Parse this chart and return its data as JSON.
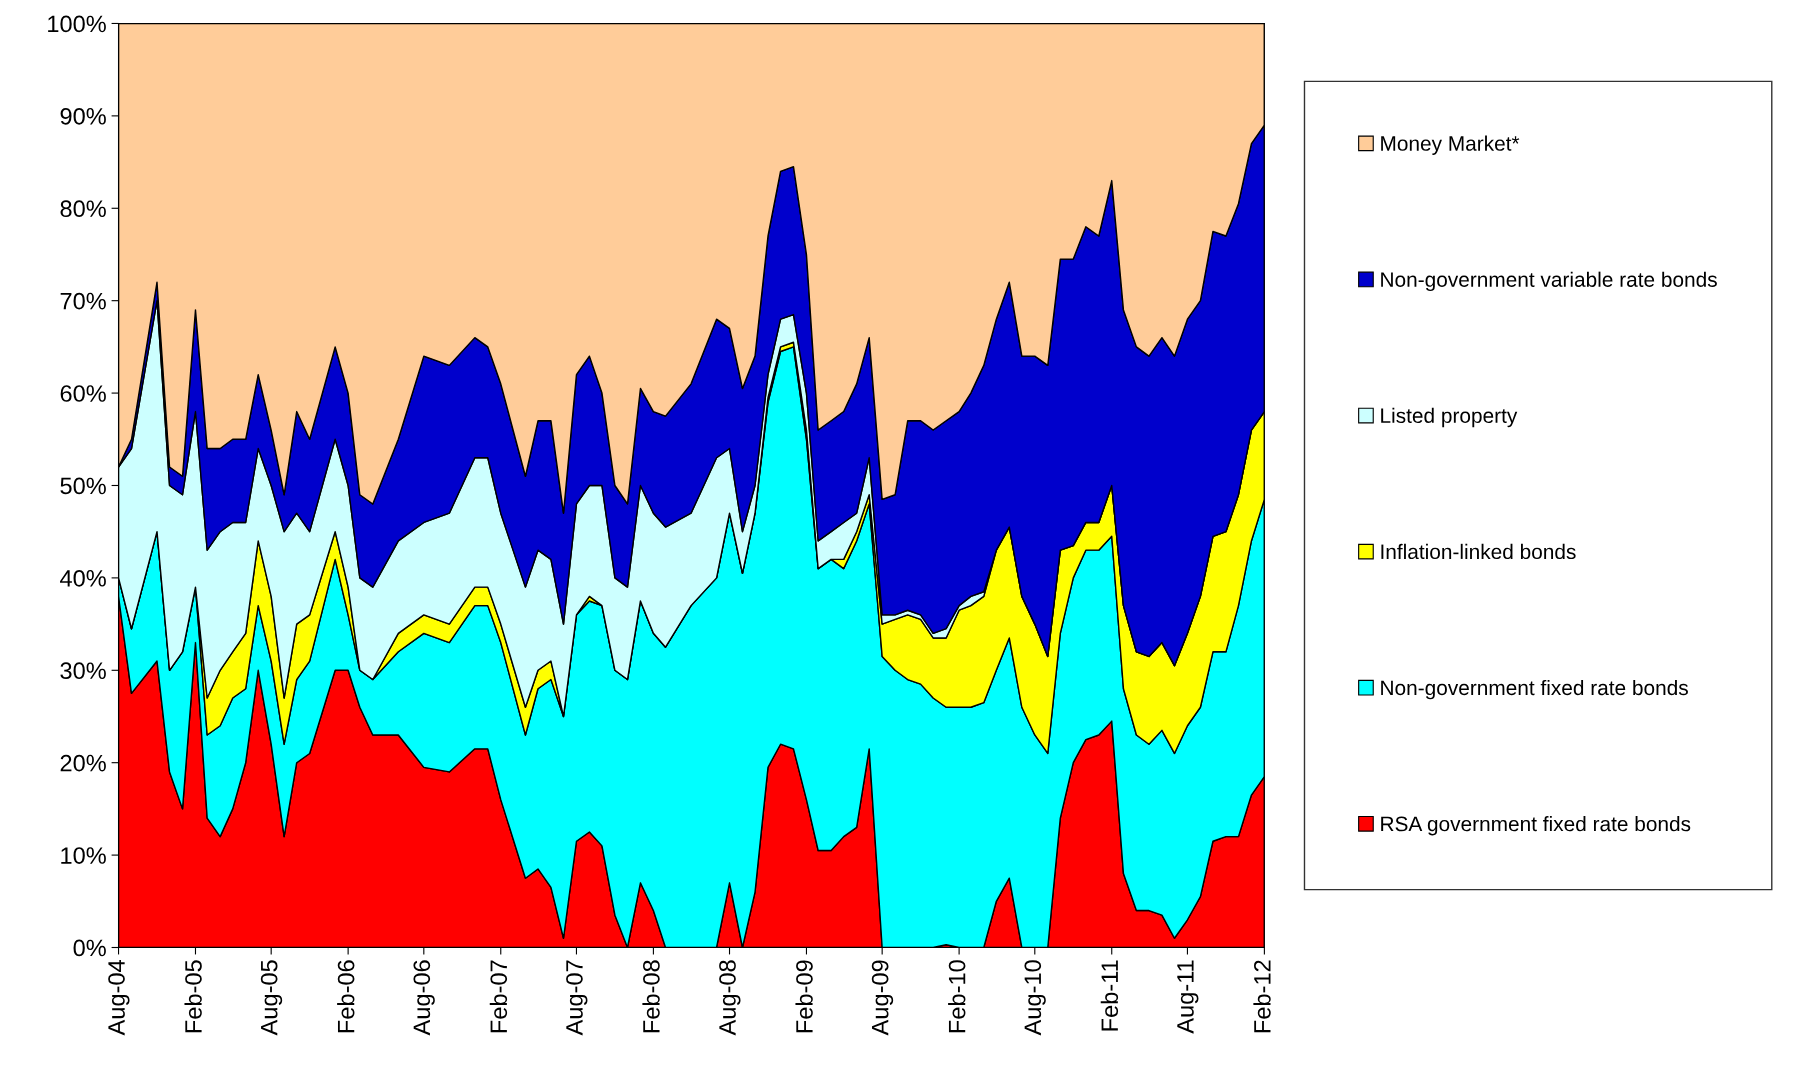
{
  "chart_data": {
    "type": "area",
    "stacked": true,
    "legend": "right",
    "x": [
      "2004-08",
      "2004-09",
      "2004-11",
      "2004-12",
      "2005-01",
      "2005-02",
      "2005-03",
      "2005-04",
      "2005-05",
      "2005-06",
      "2005-07",
      "2005-08",
      "2005-09",
      "2005-10",
      "2005-11",
      "2006-01",
      "2006-02",
      "2006-03",
      "2006-04",
      "2006-06",
      "2006-08",
      "2006-10",
      "2006-12",
      "2007-01",
      "2007-02",
      "2007-04",
      "2007-05",
      "2007-06",
      "2007-07",
      "2007-08",
      "2007-09",
      "2007-10",
      "2007-11",
      "2007-12",
      "2008-01",
      "2008-02",
      "2008-03",
      "2008-05",
      "2008-07",
      "2008-08",
      "2008-09",
      "2008-10",
      "2008-11",
      "2008-12",
      "2009-01",
      "2009-02",
      "2009-03",
      "2009-04",
      "2009-05",
      "2009-06",
      "2009-07",
      "2009-08",
      "2009-09",
      "2009-10",
      "2009-11",
      "2009-12",
      "2010-01",
      "2010-02",
      "2010-03",
      "2010-04",
      "2010-05",
      "2010-06",
      "2010-07",
      "2010-08",
      "2010-09",
      "2010-10",
      "2010-11",
      "2010-12",
      "2011-01",
      "2011-02",
      "2011-03",
      "2011-04",
      "2011-05",
      "2011-06",
      "2011-07",
      "2011-08",
      "2011-09",
      "2011-10",
      "2011-11",
      "2011-12",
      "2012-01",
      "2012-02"
    ],
    "series": [
      {
        "name": "RSA government fixed rate bonds",
        "color": "#ff0000",
        "values": [
          38,
          27.5,
          31,
          19,
          15,
          33,
          14,
          12,
          15,
          20,
          30,
          22,
          12,
          20,
          21,
          30,
          30,
          26,
          23,
          23,
          19.5,
          19,
          21.5,
          21.5,
          16,
          7.5,
          8.5,
          6.5,
          1,
          11.5,
          12.5,
          11,
          3.5,
          0,
          7,
          4,
          0,
          0,
          0,
          7,
          0,
          6,
          19.5,
          22,
          21.5,
          16,
          10.5,
          10.5,
          12,
          13,
          21.5,
          0,
          0,
          0,
          0,
          0,
          0.3,
          0,
          0,
          0,
          5,
          7.5,
          0,
          0,
          0,
          14,
          20,
          22.5,
          23,
          24.5,
          8,
          4,
          4,
          3.5,
          1,
          3,
          5.5,
          11.5,
          12,
          12,
          16.5,
          18.5
        ]
      },
      {
        "name": "Non-government fixed rate bonds",
        "color": "#00ffff",
        "values": [
          2,
          7,
          14,
          11,
          17,
          6,
          9,
          12,
          12,
          8,
          7,
          9,
          10,
          9,
          10,
          12,
          6,
          4,
          6,
          9,
          14.5,
          14,
          15.5,
          15.5,
          17,
          15.5,
          19.5,
          22.5,
          24,
          24.5,
          25,
          26,
          26.5,
          29,
          30.5,
          30,
          32.5,
          37,
          40,
          40,
          40.5,
          41,
          39.5,
          42.5,
          43.5,
          39,
          30.5,
          31.5,
          29,
          31,
          26.5,
          31.5,
          30,
          29,
          28.5,
          27,
          25.7,
          26,
          26,
          26.5,
          25,
          26,
          26,
          23,
          21,
          20,
          20,
          20.5,
          20,
          20,
          20,
          19,
          18,
          20,
          20,
          21,
          20.5,
          20.5,
          20,
          25,
          27.5,
          30
        ]
      },
      {
        "name": "Inflation-linked bonds",
        "color": "#ffff00",
        "values": [
          0,
          0,
          0,
          0,
          0,
          0,
          4,
          6,
          5,
          6,
          7,
          7,
          5,
          6,
          5,
          3,
          3,
          0,
          0,
          2,
          2,
          2,
          2,
          2,
          2,
          3,
          2,
          2,
          0,
          0,
          0.5,
          0,
          0,
          0,
          0,
          0,
          0,
          0,
          0,
          0,
          0,
          0,
          0.5,
          0.5,
          0.5,
          1,
          0,
          0,
          1,
          1,
          1,
          3.5,
          5.5,
          7,
          7,
          6.5,
          7.5,
          10.5,
          11,
          11.5,
          13,
          12,
          12,
          12,
          10.5,
          9,
          3.5,
          3,
          3,
          5.5,
          9,
          9,
          9.5,
          9.5,
          9.5,
          10,
          12,
          12.5,
          13,
          12,
          12,
          9.5
        ]
      },
      {
        "name": "Listed property",
        "color": "#ccffff",
        "values": [
          12,
          19.5,
          25,
          20,
          17,
          19,
          16,
          15,
          14,
          12,
          10,
          12,
          18,
          12,
          9,
          10,
          11,
          10,
          10,
          10,
          10,
          12,
          14,
          14,
          12,
          13,
          13,
          11,
          10,
          12,
          12,
          13,
          10,
          10,
          12.5,
          13,
          13,
          10,
          13,
          7,
          4.5,
          3,
          2.5,
          3,
          3,
          4,
          3,
          3,
          4,
          2,
          4,
          1,
          0.5,
          0.5,
          0.5,
          0.5,
          1,
          0.5,
          1,
          0.5,
          0,
          0,
          0,
          0,
          0,
          0,
          0,
          0,
          0,
          0,
          0,
          0,
          0,
          0,
          0,
          0,
          0,
          0,
          0,
          0,
          0,
          0
        ]
      },
      {
        "name": "Non-government variable rate bonds",
        "color": "#0000cc",
        "values": [
          0,
          1,
          2,
          2,
          2,
          11,
          11,
          9,
          9,
          9,
          8,
          6,
          4,
          11,
          10,
          10,
          10,
          9,
          9,
          11,
          18,
          16,
          13,
          12,
          14,
          12,
          14,
          15,
          12,
          14,
          14,
          10,
          10,
          9,
          10.5,
          11,
          12,
          14,
          15,
          13,
          15.5,
          14,
          15,
          16,
          16,
          15,
          12,
          12,
          12,
          14,
          13,
          12.5,
          13,
          20.5,
          21,
          22,
          22.5,
          21,
          22,
          24.5,
          25,
          26.5,
          26,
          29,
          31.5,
          31.5,
          31,
          32,
          31,
          33,
          32,
          33,
          32.5,
          33,
          33.5,
          34,
          32,
          33,
          32,
          31.5,
          31,
          31
        ]
      },
      {
        "name": "Money Market*",
        "color": "#ffcc99",
        "values": [
          48,
          45,
          28,
          48,
          49,
          31,
          46,
          46,
          45,
          45,
          38,
          44,
          51,
          42,
          45,
          35,
          40,
          51,
          52,
          45,
          36,
          37,
          34,
          35,
          39,
          49,
          43,
          43,
          53,
          38,
          36,
          40,
          50,
          52,
          39.5,
          42,
          42.5,
          39,
          32,
          33,
          39.5,
          36,
          23,
          16,
          15.5,
          25,
          44,
          43,
          42,
          39,
          34,
          51.5,
          51,
          43,
          43,
          44,
          43,
          42,
          40,
          37,
          32,
          28,
          36,
          36,
          37,
          25.5,
          25.5,
          22,
          23,
          17,
          31,
          35,
          36,
          34,
          36,
          32,
          30,
          22.5,
          23,
          19.5,
          13,
          11
        ]
      }
    ],
    "xlim": [
      "2004-08",
      "2012-02"
    ],
    "xticks": [
      {
        "value": "2004-08",
        "label": "Aug-04"
      },
      {
        "value": "2005-02",
        "label": "Feb-05"
      },
      {
        "value": "2005-08",
        "label": "Aug-05"
      },
      {
        "value": "2006-02",
        "label": "Feb-06"
      },
      {
        "value": "2006-08",
        "label": "Aug-06"
      },
      {
        "value": "2007-02",
        "label": "Feb-07"
      },
      {
        "value": "2007-08",
        "label": "Aug-07"
      },
      {
        "value": "2008-02",
        "label": "Feb-08"
      },
      {
        "value": "2008-08",
        "label": "Aug-08"
      },
      {
        "value": "2009-02",
        "label": "Feb-09"
      },
      {
        "value": "2009-08",
        "label": "Aug-09"
      },
      {
        "value": "2010-02",
        "label": "Feb-10"
      },
      {
        "value": "2010-08",
        "label": "Aug-10"
      },
      {
        "value": "2011-02",
        "label": "Feb-11"
      },
      {
        "value": "2011-08",
        "label": "Aug-11"
      },
      {
        "value": "2012-02",
        "label": "Feb-12"
      }
    ],
    "ylim": [
      0,
      100
    ],
    "yticks": [
      {
        "value": 0,
        "label": "0%"
      },
      {
        "value": 10,
        "label": "10%"
      },
      {
        "value": 20,
        "label": "20%"
      },
      {
        "value": 30,
        "label": "30%"
      },
      {
        "value": 40,
        "label": "40%"
      },
      {
        "value": 50,
        "label": "50%"
      },
      {
        "value": 60,
        "label": "60%"
      },
      {
        "value": 70,
        "label": "70%"
      },
      {
        "value": 80,
        "label": "80%"
      },
      {
        "value": 90,
        "label": "90%"
      },
      {
        "value": 100,
        "label": "100%"
      }
    ]
  }
}
